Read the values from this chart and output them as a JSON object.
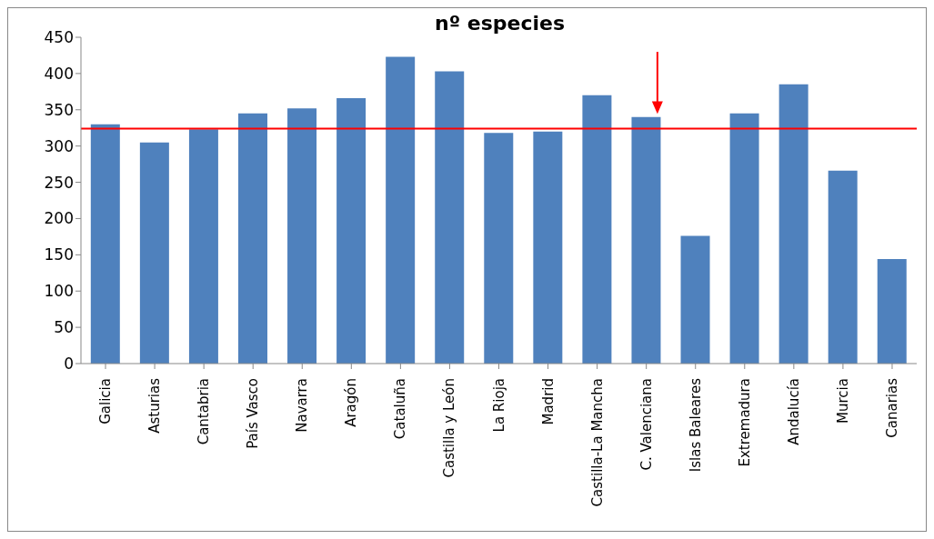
{
  "chart_data": {
    "type": "bar",
    "title": "nº especies",
    "categories": [
      "Galicia",
      "Asturias",
      "Cantabria",
      "País Vasco",
      "Navarra",
      "Aragón",
      "Cataluña",
      "Castilla y León",
      "La Rioja",
      "Madrid",
      "Castilla-La Mancha",
      "C. Valenciana",
      "Islas Baleares",
      "Extremadura",
      "Andalucía",
      "Murcia",
      "Canarias"
    ],
    "values": [
      330,
      305,
      323,
      345,
      352,
      366,
      423,
      403,
      318,
      320,
      370,
      340,
      176,
      345,
      385,
      266,
      144
    ],
    "color": "#4f81bd",
    "ylim": [
      0,
      450
    ],
    "yticks": [
      0,
      50,
      100,
      150,
      200,
      250,
      300,
      350,
      400,
      450
    ],
    "ref_lines": [
      {
        "axis": "y",
        "value": 324,
        "color": "#ff0000"
      }
    ],
    "grid": false,
    "legend": false
  }
}
